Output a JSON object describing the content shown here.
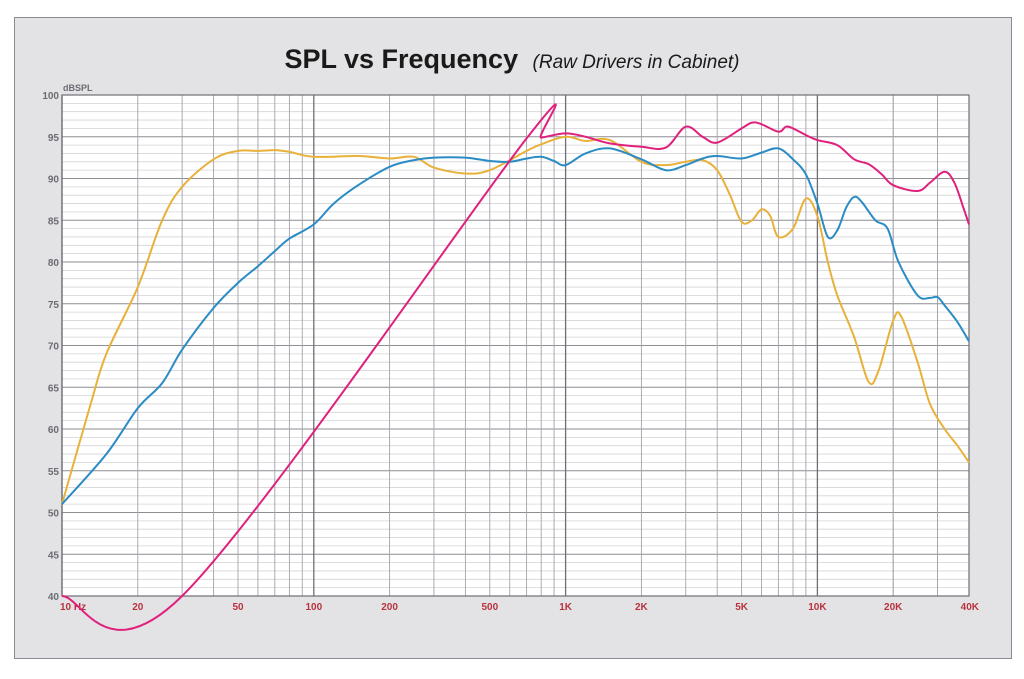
{
  "chart_data": {
    "type": "line",
    "title": "SPL vs Frequency",
    "subtitle": "(Raw Drivers in Cabinet)",
    "ylabel": "dBSPL",
    "xlabel": "",
    "x_scale": "log",
    "xlim": [
      10,
      40000
    ],
    "ylim": [
      40,
      100
    ],
    "grid": true,
    "yticks": [
      {
        "v": 40,
        "label": "40"
      },
      {
        "v": 45,
        "label": "45"
      },
      {
        "v": 50,
        "label": "50"
      },
      {
        "v": 55,
        "label": "55"
      },
      {
        "v": 60,
        "label": "60"
      },
      {
        "v": 65,
        "label": "65"
      },
      {
        "v": 70,
        "label": "70"
      },
      {
        "v": 75,
        "label": "75"
      },
      {
        "v": 80,
        "label": "80"
      },
      {
        "v": 85,
        "label": "85"
      },
      {
        "v": 90,
        "label": "90"
      },
      {
        "v": 95,
        "label": "95"
      },
      {
        "v": 100,
        "label": "100"
      }
    ],
    "xticks": [
      {
        "v": 10,
        "label": "10  Hz"
      },
      {
        "v": 20,
        "label": "20"
      },
      {
        "v": 50,
        "label": "50"
      },
      {
        "v": 100,
        "label": "100"
      },
      {
        "v": 200,
        "label": "200"
      },
      {
        "v": 500,
        "label": "500"
      },
      {
        "v": 1000,
        "label": "1K"
      },
      {
        "v": 2000,
        "label": "2K"
      },
      {
        "v": 5000,
        "label": "5K"
      },
      {
        "v": 10000,
        "label": "10K"
      },
      {
        "v": 20000,
        "label": "20K"
      },
      {
        "v": 40000,
        "label": "40K"
      }
    ],
    "series": [
      {
        "color": "#e8b13a",
        "points": [
          [
            10,
            51
          ],
          [
            13,
            63
          ],
          [
            15,
            69
          ],
          [
            20,
            77
          ],
          [
            25,
            85
          ],
          [
            30,
            89
          ],
          [
            40,
            92.3
          ],
          [
            50,
            93.3
          ],
          [
            60,
            93.3
          ],
          [
            70,
            93.4
          ],
          [
            80,
            93.2
          ],
          [
            100,
            92.6
          ],
          [
            150,
            92.7
          ],
          [
            200,
            92.4
          ],
          [
            250,
            92.6
          ],
          [
            300,
            91.3
          ],
          [
            400,
            90.6
          ],
          [
            500,
            91.0
          ],
          [
            700,
            93.3
          ],
          [
            800,
            94.1
          ],
          [
            1000,
            95.0
          ],
          [
            1200,
            94.5
          ],
          [
            1500,
            94.6
          ],
          [
            2000,
            92.0
          ],
          [
            2500,
            91.6
          ],
          [
            3000,
            92.0
          ],
          [
            3500,
            92.2
          ],
          [
            4000,
            91.0
          ],
          [
            4500,
            88.0
          ],
          [
            5000,
            84.8
          ],
          [
            5500,
            85.0
          ],
          [
            6000,
            86.3
          ],
          [
            6500,
            85.5
          ],
          [
            7000,
            83.0
          ],
          [
            8000,
            84.0
          ],
          [
            9000,
            87.6
          ],
          [
            10000,
            85.5
          ],
          [
            11000,
            80.0
          ],
          [
            12000,
            76.0
          ],
          [
            14000,
            71.0
          ],
          [
            16000,
            65.6
          ],
          [
            17500,
            67.0
          ],
          [
            20000,
            73.0
          ],
          [
            21500,
            73.5
          ],
          [
            25000,
            68.0
          ],
          [
            28000,
            63.0
          ],
          [
            32000,
            60.0
          ],
          [
            36000,
            58.0
          ],
          [
            40000,
            56.0
          ]
        ]
      },
      {
        "color": "#2a8bc5",
        "points": [
          [
            10,
            51
          ],
          [
            15,
            57
          ],
          [
            20,
            62.5
          ],
          [
            25,
            65.5
          ],
          [
            30,
            69.5
          ],
          [
            40,
            74.5
          ],
          [
            50,
            77.5
          ],
          [
            60,
            79.5
          ],
          [
            70,
            81.3
          ],
          [
            80,
            82.8
          ],
          [
            100,
            84.5
          ],
          [
            120,
            87.0
          ],
          [
            150,
            89.2
          ],
          [
            200,
            91.4
          ],
          [
            250,
            92.2
          ],
          [
            300,
            92.5
          ],
          [
            400,
            92.5
          ],
          [
            500,
            92.1
          ],
          [
            600,
            92.0
          ],
          [
            700,
            92.4
          ],
          [
            800,
            92.6
          ],
          [
            900,
            92.1
          ],
          [
            1000,
            91.6
          ],
          [
            1200,
            93.0
          ],
          [
            1500,
            93.6
          ],
          [
            2000,
            92.3
          ],
          [
            2500,
            91.0
          ],
          [
            3000,
            91.6
          ],
          [
            3500,
            92.4
          ],
          [
            4000,
            92.7
          ],
          [
            5000,
            92.4
          ],
          [
            6000,
            93.1
          ],
          [
            7000,
            93.6
          ],
          [
            8000,
            92.3
          ],
          [
            9000,
            90.5
          ],
          [
            10000,
            87.0
          ],
          [
            11000,
            83.0
          ],
          [
            12000,
            83.8
          ],
          [
            13000,
            86.5
          ],
          [
            14000,
            87.8
          ],
          [
            15000,
            87.2
          ],
          [
            17000,
            85.0
          ],
          [
            19000,
            84.0
          ],
          [
            21000,
            80.0
          ],
          [
            25000,
            76.0
          ],
          [
            28000,
            75.7
          ],
          [
            30000,
            75.8
          ],
          [
            32000,
            74.8
          ],
          [
            36000,
            72.8
          ],
          [
            40000,
            70.5
          ]
        ]
      },
      {
        "color": "#e0207d",
        "points": [
          [
            10,
            40
          ],
          [
            30,
            40
          ],
          [
            700,
            94.8
          ],
          [
            800,
            94.9
          ],
          [
            1000,
            95.4
          ],
          [
            1200,
            95.0
          ],
          [
            1500,
            94.2
          ],
          [
            2000,
            93.8
          ],
          [
            2500,
            93.7
          ],
          [
            3000,
            96.2
          ],
          [
            3500,
            95.0
          ],
          [
            4000,
            94.3
          ],
          [
            5000,
            96.0
          ],
          [
            5500,
            96.7
          ],
          [
            6000,
            96.5
          ],
          [
            7000,
            95.6
          ],
          [
            7500,
            96.2
          ],
          [
            8000,
            96.0
          ],
          [
            9000,
            95.2
          ],
          [
            10000,
            94.6
          ],
          [
            12000,
            94.0
          ],
          [
            14000,
            92.3
          ],
          [
            16000,
            91.7
          ],
          [
            18000,
            90.5
          ],
          [
            20000,
            89.2
          ],
          [
            25000,
            88.5
          ],
          [
            28000,
            89.5
          ],
          [
            32000,
            90.8
          ],
          [
            35000,
            89.5
          ],
          [
            38000,
            86.5
          ],
          [
            40000,
            84.5
          ]
        ]
      }
    ]
  }
}
